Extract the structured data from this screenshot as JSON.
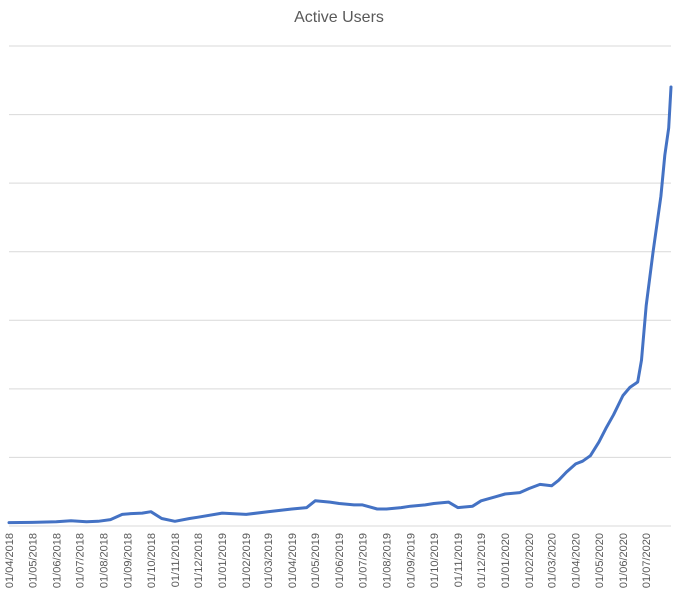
{
  "chart_data": {
    "type": "line",
    "title": "Active Users",
    "xlabel": "",
    "ylabel": "",
    "x_tick_labels": [
      "01/04/2018",
      "01/05/2018",
      "01/06/2018",
      "01/07/2018",
      "01/08/2018",
      "01/09/2018",
      "01/10/2018",
      "01/11/2018",
      "01/12/2018",
      "01/01/2019",
      "01/02/2019",
      "01/03/2019",
      "01/04/2019",
      "01/05/2019",
      "01/06/2019",
      "01/07/2019",
      "01/08/2019",
      "01/09/2019",
      "01/10/2019",
      "01/11/2019",
      "01/12/2019",
      "01/01/2020",
      "01/02/2020",
      "01/03/2020",
      "01/04/2020",
      "01/05/2020",
      "01/06/2020",
      "01/07/2020"
    ],
    "y_tick_labels_shown": false,
    "y_gridlines": 7,
    "grid": true,
    "legend": "none",
    "series_color": "#4472c4",
    "series": [
      {
        "x": [
          "2018-04-01",
          "2018-05-01",
          "2018-06-01",
          "2018-06-20",
          "2018-07-10",
          "2018-07-25",
          "2018-08-10",
          "2018-08-25",
          "2018-09-05",
          "2018-09-20",
          "2018-10-01",
          "2018-10-15",
          "2018-11-01",
          "2018-11-20",
          "2018-12-01",
          "2019-01-01",
          "2019-02-01",
          "2019-03-01",
          "2019-04-01",
          "2019-04-20",
          "2019-05-01",
          "2019-05-20",
          "2019-06-01",
          "2019-06-20",
          "2019-07-01",
          "2019-07-20",
          "2019-08-01",
          "2019-08-20",
          "2019-09-01",
          "2019-09-20",
          "2019-10-01",
          "2019-10-20",
          "2019-11-01",
          "2019-11-20",
          "2019-12-01",
          "2019-12-20",
          "2020-01-01",
          "2020-01-20",
          "2020-02-01",
          "2020-02-15",
          "2020-03-01",
          "2020-03-10",
          "2020-03-20",
          "2020-04-01",
          "2020-04-10",
          "2020-04-20",
          "2020-05-01",
          "2020-05-10",
          "2020-05-20",
          "2020-06-01",
          "2020-06-10",
          "2020-06-20",
          "2020-06-25",
          "2020-07-01",
          "2020-07-10",
          "2020-07-20",
          "2020-07-25",
          "2020-07-30",
          "2020-08-02"
        ],
        "y": [
          0.5,
          0.6,
          0.8,
          1.2,
          0.8,
          1.0,
          1.6,
          3.5,
          3.8,
          4.0,
          4.5,
          2.0,
          1.0,
          2.0,
          2.5,
          4.0,
          3.5,
          4.5,
          5.5,
          6.0,
          8.5,
          8.0,
          7.5,
          7.0,
          7.0,
          5.5,
          5.5,
          6.0,
          6.5,
          7.0,
          7.5,
          8.0,
          6.0,
          6.5,
          8.5,
          10.0,
          11.0,
          11.5,
          13.0,
          14.5,
          14.0,
          16.0,
          19.0,
          22.0,
          23.0,
          25.0,
          30.0,
          35.0,
          40.0,
          47.0,
          50.0,
          52.0,
          60.0,
          80.0,
          100.0,
          120.0,
          135.0,
          145.0,
          160.0
        ]
      }
    ]
  }
}
